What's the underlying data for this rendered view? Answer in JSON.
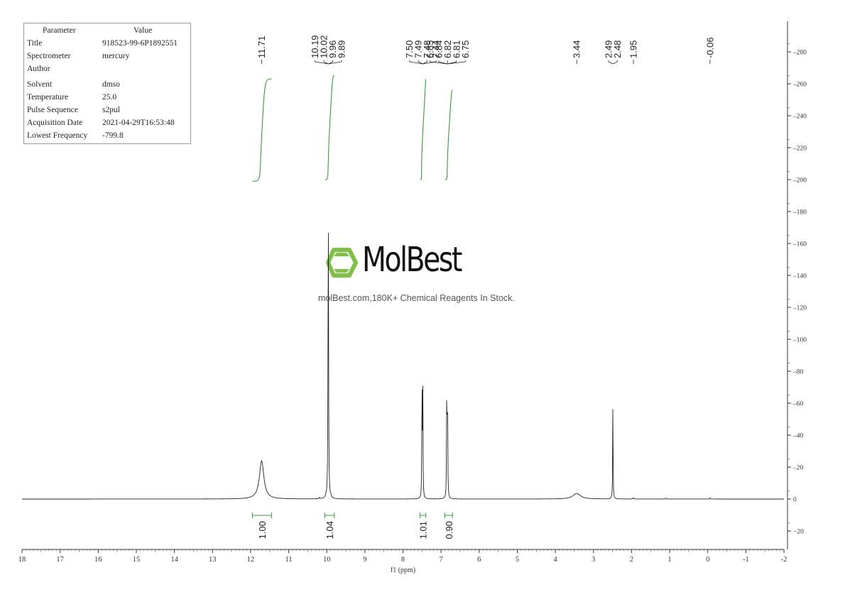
{
  "parameters": {
    "header": {
      "name": "Parameter",
      "value": "Value"
    },
    "rows": [
      {
        "name": "Title",
        "value": "918523-99-6P1892551"
      },
      {
        "name": "Spectrometer",
        "value": "mercury"
      },
      {
        "name": "Author",
        "value": ""
      },
      {
        "name": "Solvent",
        "value": "dmso"
      },
      {
        "name": "Temperature",
        "value": "25.0"
      },
      {
        "name": "Pulse Sequence",
        "value": "s2pul"
      },
      {
        "name": "Acquisition Date",
        "value": "2021-04-29T16:53:48"
      },
      {
        "name": "Lowest Frequency",
        "value": "-799.8"
      }
    ]
  },
  "watermark": {
    "brand": "MolBest",
    "tagline": "molBest.com,180K+ Chemical Reagents In Stock.",
    "logo_color": "#7dc242"
  },
  "chart_data": {
    "type": "line",
    "title": "",
    "xlabel": "f1 (ppm)",
    "ylabel": "",
    "xlim": [
      18,
      -2
    ],
    "ylim": [
      -30,
      295
    ],
    "x_reversed": true,
    "x_ticks": [
      "18",
      "17",
      "16",
      "15",
      "14",
      "13",
      "12",
      "11",
      "10",
      "9",
      "8",
      "7",
      "6",
      "5",
      "4",
      "3",
      "2",
      "1",
      "0",
      "-1",
      "-2"
    ],
    "y_ticks": [
      "-20",
      "0",
      "20",
      "40",
      "60",
      "80",
      "100",
      "120",
      "140",
      "160",
      "180",
      "200",
      "220",
      "240",
      "260",
      "280"
    ],
    "line_color": "#222222",
    "integral_color": "#3a9a3a",
    "peaks": [
      {
        "ppm": 11.71,
        "height": 24,
        "width": 0.07
      },
      {
        "ppm": 9.96,
        "height": 188,
        "width": 0.008
      },
      {
        "ppm": 10.19,
        "height": 0.8,
        "width": 0.01
      },
      {
        "ppm": 10.02,
        "height": 1.2,
        "width": 0.01
      },
      {
        "ppm": 9.89,
        "height": 1.0,
        "width": 0.01
      },
      {
        "ppm": 7.5,
        "height": 78,
        "width": 0.006
      },
      {
        "ppm": 7.48,
        "height": 72,
        "width": 0.006
      },
      {
        "ppm": 6.85,
        "height": 79,
        "width": 0.006
      },
      {
        "ppm": 6.83,
        "height": 74,
        "width": 0.006
      },
      {
        "ppm": 3.44,
        "height": 3.5,
        "width": 0.12
      },
      {
        "ppm": 2.49,
        "height": 63,
        "width": 0.006
      },
      {
        "ppm": 1.95,
        "height": 0.8,
        "width": 0.01
      },
      {
        "ppm": 1.1,
        "height": 0.6,
        "width": 0.01
      },
      {
        "ppm": -0.06,
        "height": 0.8,
        "width": 0.008
      }
    ],
    "peak_labels": [
      {
        "group": [
          "11.71"
        ],
        "ppm": 11.71
      },
      {
        "group": [
          "10.19",
          "10.02",
          "9.96",
          "9.89"
        ],
        "ppm": 9.96
      },
      {
        "group": [
          "7.50",
          "7.49",
          "7.48",
          "7.44"
        ],
        "ppm": 7.48
      },
      {
        "group": [
          "6.85",
          "6.84",
          "6.82",
          "6.81",
          "6.75"
        ],
        "ppm": 6.83
      },
      {
        "group": [
          "3.44"
        ],
        "ppm": 3.44
      },
      {
        "group": [
          "2.49",
          "2.48"
        ],
        "ppm": 2.49
      },
      {
        "group": [
          "1.95"
        ],
        "ppm": 1.95
      },
      {
        "group": [
          "-0.06"
        ],
        "ppm": -0.06
      }
    ],
    "integrals": [
      {
        "from": 11.95,
        "to": 11.45,
        "value": "1.00",
        "y_start": 199,
        "y_end": 263
      },
      {
        "from": 10.05,
        "to": 9.8,
        "value": "1.04",
        "y_start": 200,
        "y_end": 265
      },
      {
        "from": 7.55,
        "to": 7.4,
        "value": "1.01",
        "y_start": 200,
        "y_end": 263
      },
      {
        "from": 6.9,
        "to": 6.7,
        "value": "0.90",
        "y_start": 200,
        "y_end": 256
      }
    ]
  }
}
